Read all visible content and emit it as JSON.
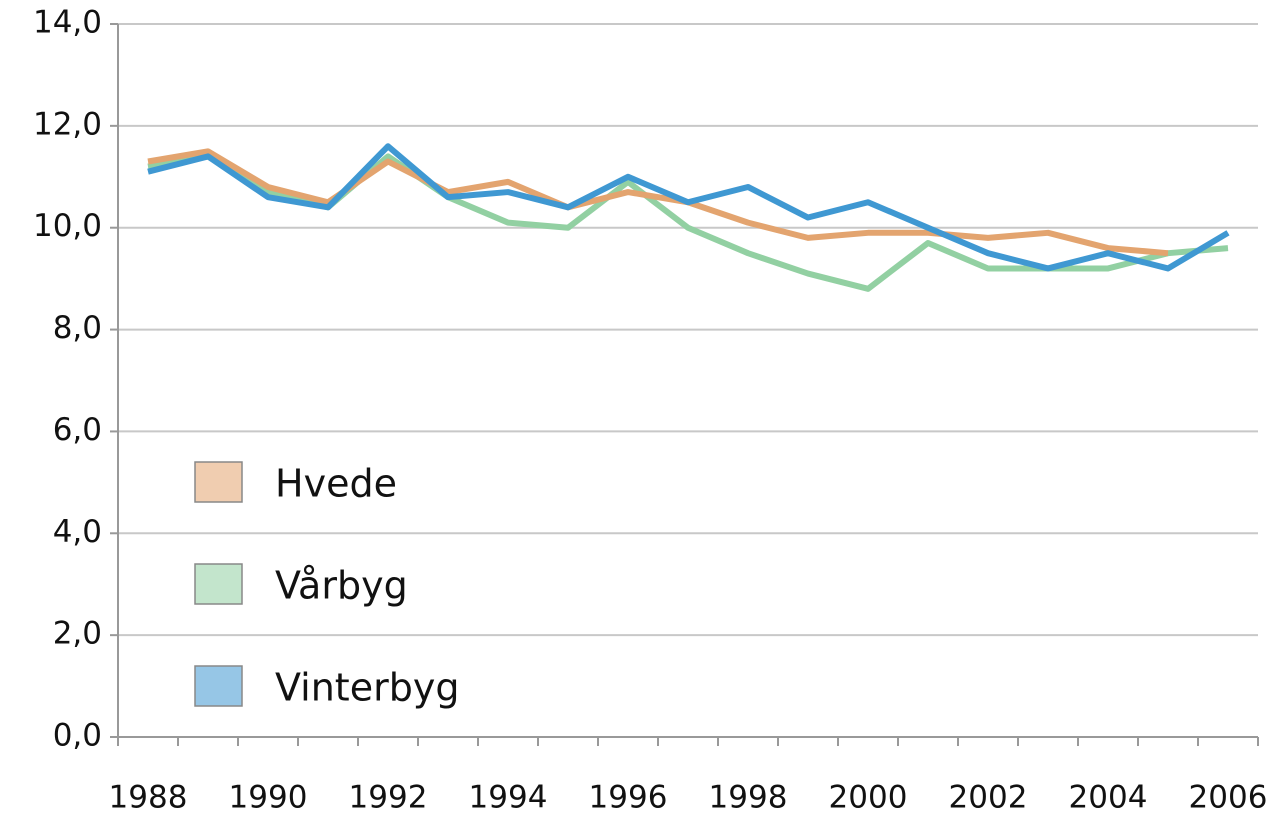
{
  "chart_data": {
    "type": "line",
    "categories": [
      "1988",
      null,
      "1990",
      null,
      "1992",
      null,
      "1994",
      null,
      "1996",
      null,
      "1998",
      null,
      "2000",
      null,
      "2002",
      null,
      "2004",
      null,
      "2006"
    ],
    "series": [
      {
        "name": "Hvede",
        "color": "#e3a46f",
        "values": [
          11.3,
          11.5,
          10.8,
          10.5,
          11.3,
          10.7,
          10.9,
          10.4,
          10.7,
          10.5,
          10.1,
          9.8,
          9.9,
          9.9,
          9.8,
          9.9,
          9.6,
          9.5,
          null
        ]
      },
      {
        "name": "Vårbyg",
        "color": "#92d0a2",
        "values": [
          11.2,
          11.4,
          10.7,
          10.4,
          11.4,
          10.6,
          10.1,
          10.0,
          10.9,
          10.0,
          9.5,
          9.1,
          8.8,
          9.7,
          9.2,
          9.2,
          9.2,
          9.5,
          9.6
        ]
      },
      {
        "name": "Vinterbyg",
        "color": "#3f98d2",
        "values": [
          11.1,
          11.4,
          10.6,
          10.4,
          11.6,
          10.6,
          10.7,
          10.4,
          11.0,
          10.5,
          10.8,
          10.2,
          10.5,
          10.0,
          9.5,
          9.2,
          9.5,
          9.2,
          9.9
        ]
      }
    ],
    "ylim": [
      0,
      14
    ],
    "yticks": [
      {
        "value": 0,
        "label": "0,0"
      },
      {
        "value": 2,
        "label": "2,0"
      },
      {
        "value": 4,
        "label": "4,0"
      },
      {
        "value": 6,
        "label": "6,0"
      },
      {
        "value": 8,
        "label": "8,0"
      },
      {
        "value": 10,
        "label": "10,0"
      },
      {
        "value": 12,
        "label": "12,0"
      },
      {
        "value": 14,
        "label": "14,0"
      }
    ],
    "grid": true
  }
}
